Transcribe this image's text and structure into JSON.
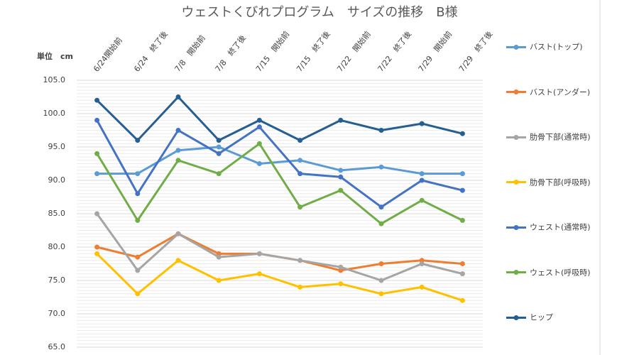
{
  "chart_data": {
    "type": "line",
    "title": "ウェストくびれプログラム　サイズの推移　B様",
    "y_label": "単位　cm",
    "categories": [
      "6/24開始前",
      "6/24　終了後",
      "7/8　開始前",
      "7/8　終了後",
      "7/15　開始前",
      "7/15　終了後",
      "7/22　開始前",
      "7/22　終了後",
      "7/29　開始前",
      "7/29　終了後"
    ],
    "series": [
      {
        "name": "バスト(トップ)",
        "color": "#5b9bd5",
        "values": [
          91,
          91,
          94.5,
          95,
          92.5,
          93,
          91.5,
          92,
          91,
          91
        ]
      },
      {
        "name": "バスト(アンダー)",
        "color": "#ed7d31",
        "values": [
          80,
          78.5,
          82,
          79,
          79,
          78,
          76.5,
          77.5,
          78,
          77.5
        ]
      },
      {
        "name": "肋骨下部(通常時)",
        "color": "#a5a5a5",
        "values": [
          85,
          76.5,
          82,
          78.5,
          79,
          78,
          77,
          75,
          77.5,
          76
        ]
      },
      {
        "name": "肋骨下部(呼吸時)",
        "color": "#ffc000",
        "values": [
          79,
          73,
          78,
          75,
          76,
          74,
          74.5,
          73,
          74,
          72
        ]
      },
      {
        "name": "ウェスト(通常時)",
        "color": "#4472c4",
        "values": [
          99,
          88,
          97.5,
          94,
          98,
          91,
          90.5,
          86,
          90,
          88.5
        ]
      },
      {
        "name": "ウェスト(呼吸時)",
        "color": "#70ad47",
        "values": [
          94,
          84,
          93,
          91,
          95.5,
          86,
          88.5,
          83.5,
          87,
          84
        ]
      },
      {
        "name": "ヒップ",
        "color": "#255e91",
        "values": [
          102,
          96,
          102.5,
          96,
          99,
          96,
          99,
          97.5,
          98.5,
          97
        ]
      }
    ],
    "ylim": [
      65,
      105
    ],
    "yticks": [
      {
        "value": 65,
        "label": "65.0"
      },
      {
        "value": 70,
        "label": "70.0"
      },
      {
        "value": 75,
        "label": "75.0"
      },
      {
        "value": 80,
        "label": "80.0"
      },
      {
        "value": 85,
        "label": "85.0"
      },
      {
        "value": 90,
        "label": "90.0"
      },
      {
        "value": 95,
        "label": "95.0"
      },
      {
        "value": 100,
        "label": "100.0"
      },
      {
        "value": 105,
        "label": "105.0"
      }
    ],
    "grid": true,
    "minor_grid_step": 0.5,
    "legend": "right"
  }
}
